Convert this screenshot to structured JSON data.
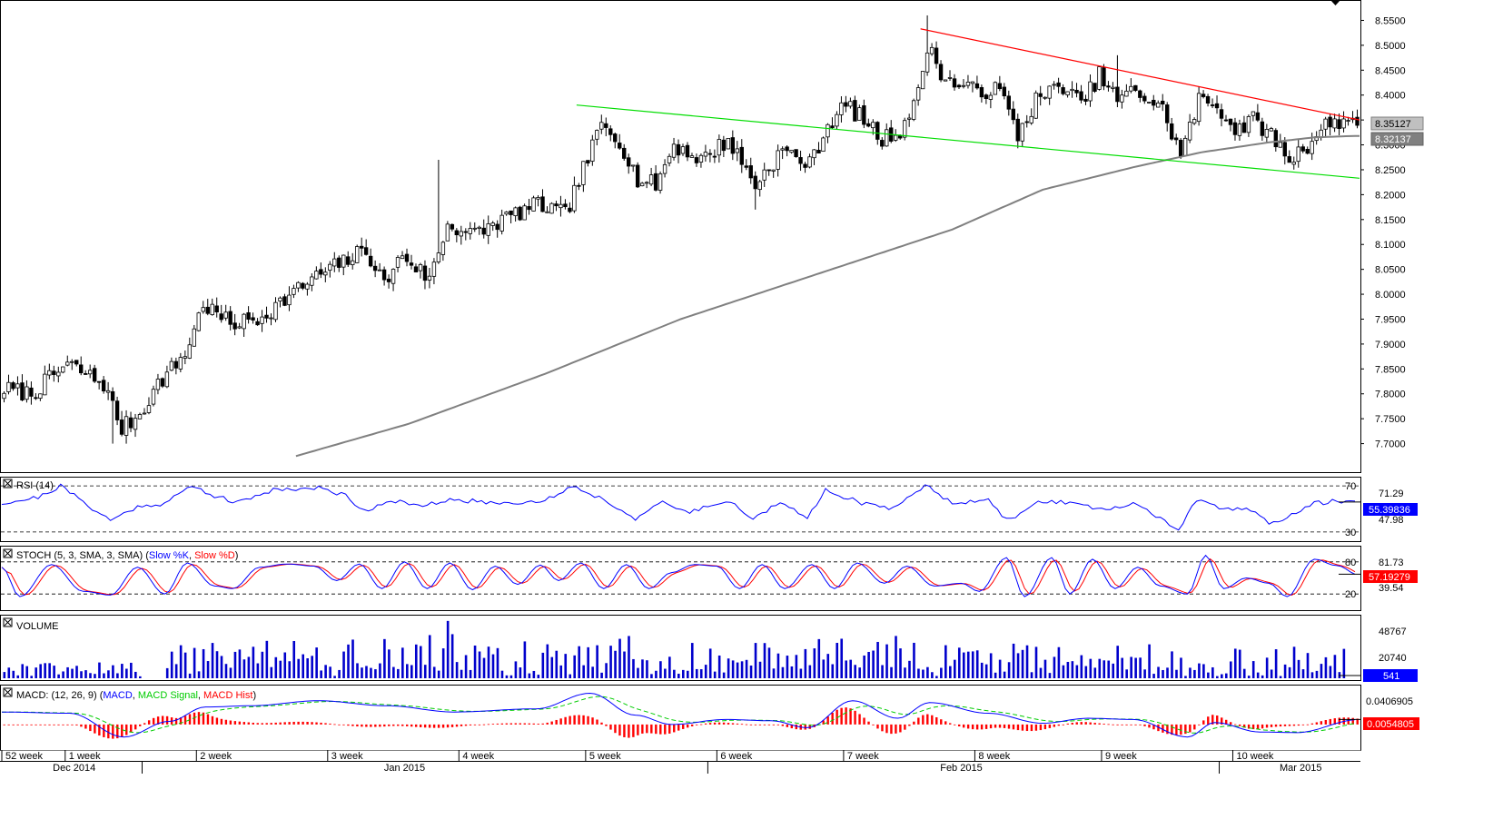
{
  "colors": {
    "background": "#ffffff",
    "border": "#000000",
    "candle": "#000000",
    "ma_line": "#808080",
    "resistance": "#ff0000",
    "support": "#00dd00",
    "rsi": "#0000ff",
    "stoch_k": "#0000ff",
    "stoch_d": "#ff0000",
    "volume": "#0000cc",
    "macd": "#0000ff",
    "macd_signal": "#00cc00",
    "macd_hist": "#ff0000",
    "last_price_tag": "#c0c0c0",
    "stoch_tag": "#ff0000",
    "volume_tag": "#0000ff"
  },
  "chart_data": [
    {
      "type": "candlestick",
      "panel": "price",
      "ylim": [
        7.65,
        8.58
      ],
      "y_ticks": [
        "8.5500",
        "8.5000",
        "8.4500",
        "8.4000",
        "8.3500",
        "8.3000",
        "8.2500",
        "8.2000",
        "8.1500",
        "8.1000",
        "8.0500",
        "8.0000",
        "7.9500",
        "7.9000",
        "7.8500",
        "7.8000",
        "7.7500",
        "7.7000"
      ],
      "last_price": "8.35127",
      "moving_average_value": "8.32137",
      "anchors": [
        {
          "i": 0,
          "p": 7.81
        },
        {
          "i": 6,
          "p": 7.8
        },
        {
          "i": 14,
          "p": 7.86
        },
        {
          "i": 22,
          "p": 7.82
        },
        {
          "i": 26,
          "p": 7.73
        },
        {
          "i": 30,
          "p": 7.76
        },
        {
          "i": 34,
          "p": 7.82
        },
        {
          "i": 40,
          "p": 7.88
        },
        {
          "i": 44,
          "p": 7.98
        },
        {
          "i": 50,
          "p": 7.94
        },
        {
          "i": 56,
          "p": 7.95
        },
        {
          "i": 62,
          "p": 7.99
        },
        {
          "i": 68,
          "p": 8.03
        },
        {
          "i": 76,
          "p": 8.07
        },
        {
          "i": 80,
          "p": 8.09
        },
        {
          "i": 84,
          "p": 8.02
        },
        {
          "i": 88,
          "p": 8.08
        },
        {
          "i": 94,
          "p": 8.03
        },
        {
          "i": 98,
          "p": 8.14
        },
        {
          "i": 104,
          "p": 8.12
        },
        {
          "i": 110,
          "p": 8.15
        },
        {
          "i": 118,
          "p": 8.18
        },
        {
          "i": 124,
          "p": 8.16
        },
        {
          "i": 128,
          "p": 8.25
        },
        {
          "i": 132,
          "p": 8.34
        },
        {
          "i": 136,
          "p": 8.31
        },
        {
          "i": 140,
          "p": 8.23
        },
        {
          "i": 144,
          "p": 8.22
        },
        {
          "i": 148,
          "p": 8.3
        },
        {
          "i": 154,
          "p": 8.27
        },
        {
          "i": 160,
          "p": 8.31
        },
        {
          "i": 166,
          "p": 8.22
        },
        {
          "i": 172,
          "p": 8.29
        },
        {
          "i": 178,
          "p": 8.26
        },
        {
          "i": 182,
          "p": 8.34
        },
        {
          "i": 186,
          "p": 8.38
        },
        {
          "i": 190,
          "p": 8.35
        },
        {
          "i": 194,
          "p": 8.31
        },
        {
          "i": 198,
          "p": 8.33
        },
        {
          "i": 202,
          "p": 8.4
        },
        {
          "i": 204,
          "p": 8.5
        },
        {
          "i": 208,
          "p": 8.43
        },
        {
          "i": 214,
          "p": 8.41
        },
        {
          "i": 220,
          "p": 8.41
        },
        {
          "i": 224,
          "p": 8.32
        },
        {
          "i": 228,
          "p": 8.39
        },
        {
          "i": 234,
          "p": 8.42
        },
        {
          "i": 238,
          "p": 8.38
        },
        {
          "i": 242,
          "p": 8.44
        },
        {
          "i": 246,
          "p": 8.39
        },
        {
          "i": 250,
          "p": 8.41
        },
        {
          "i": 256,
          "p": 8.37
        },
        {
          "i": 260,
          "p": 8.28
        },
        {
          "i": 264,
          "p": 8.39
        },
        {
          "i": 268,
          "p": 8.38
        },
        {
          "i": 272,
          "p": 8.33
        },
        {
          "i": 276,
          "p": 8.35
        },
        {
          "i": 280,
          "p": 8.32
        },
        {
          "i": 284,
          "p": 8.27
        },
        {
          "i": 288,
          "p": 8.3
        },
        {
          "i": 292,
          "p": 8.34
        },
        {
          "i": 296,
          "p": 8.35
        },
        {
          "i": 299,
          "p": 8.35
        }
      ],
      "spikes": [
        {
          "i": 96,
          "high": 8.27
        },
        {
          "i": 204,
          "high": 8.56
        },
        {
          "i": 24,
          "low": 7.7
        },
        {
          "i": 166,
          "low": 8.17
        },
        {
          "i": 246,
          "high": 8.48
        }
      ],
      "moving_average": [
        {
          "i": 65,
          "p": 7.675
        },
        {
          "i": 90,
          "p": 7.74
        },
        {
          "i": 120,
          "p": 7.84
        },
        {
          "i": 150,
          "p": 7.95
        },
        {
          "i": 180,
          "p": 8.04
        },
        {
          "i": 210,
          "p": 8.13
        },
        {
          "i": 230,
          "p": 8.21
        },
        {
          "i": 250,
          "p": 8.255
        },
        {
          "i": 265,
          "p": 8.285
        },
        {
          "i": 280,
          "p": 8.305
        },
        {
          "i": 290,
          "p": 8.315
        },
        {
          "i": 299,
          "p": 8.318
        }
      ],
      "trendlines": [
        {
          "name": "resistance",
          "from": {
            "i": 203,
            "p": 8.533
          },
          "to": {
            "i": 300,
            "p": 8.35
          }
        },
        {
          "name": "support",
          "from": {
            "i": 127,
            "p": 8.38
          },
          "to": {
            "i": 300,
            "p": 8.233
          }
        }
      ]
    },
    {
      "type": "line",
      "panel": "rsi",
      "title": "RSI (14)",
      "ylim": [
        22,
        78
      ],
      "levels": [
        70,
        30
      ],
      "last_value": "55.39836",
      "axis_labels": [
        "71.29",
        "47.98"
      ],
      "anchors": [
        {
          "i": 0,
          "v": 55
        },
        {
          "i": 8,
          "v": 60
        },
        {
          "i": 13,
          "v": 70
        },
        {
          "i": 18,
          "v": 56
        },
        {
          "i": 24,
          "v": 40
        },
        {
          "i": 30,
          "v": 52
        },
        {
          "i": 36,
          "v": 55
        },
        {
          "i": 42,
          "v": 70
        },
        {
          "i": 46,
          "v": 63
        },
        {
          "i": 52,
          "v": 55
        },
        {
          "i": 60,
          "v": 67
        },
        {
          "i": 70,
          "v": 68
        },
        {
          "i": 76,
          "v": 62
        },
        {
          "i": 80,
          "v": 48
        },
        {
          "i": 86,
          "v": 58
        },
        {
          "i": 92,
          "v": 52
        },
        {
          "i": 100,
          "v": 58
        },
        {
          "i": 110,
          "v": 55
        },
        {
          "i": 120,
          "v": 57
        },
        {
          "i": 126,
          "v": 70
        },
        {
          "i": 132,
          "v": 60
        },
        {
          "i": 140,
          "v": 42
        },
        {
          "i": 146,
          "v": 55
        },
        {
          "i": 152,
          "v": 47
        },
        {
          "i": 160,
          "v": 58
        },
        {
          "i": 166,
          "v": 42
        },
        {
          "i": 172,
          "v": 55
        },
        {
          "i": 178,
          "v": 42
        },
        {
          "i": 182,
          "v": 67
        },
        {
          "i": 190,
          "v": 55
        },
        {
          "i": 196,
          "v": 50
        },
        {
          "i": 204,
          "v": 70
        },
        {
          "i": 210,
          "v": 56
        },
        {
          "i": 218,
          "v": 57
        },
        {
          "i": 222,
          "v": 40
        },
        {
          "i": 230,
          "v": 57
        },
        {
          "i": 238,
          "v": 55
        },
        {
          "i": 244,
          "v": 48
        },
        {
          "i": 250,
          "v": 55
        },
        {
          "i": 256,
          "v": 42
        },
        {
          "i": 260,
          "v": 32
        },
        {
          "i": 264,
          "v": 57
        },
        {
          "i": 270,
          "v": 50
        },
        {
          "i": 276,
          "v": 50
        },
        {
          "i": 280,
          "v": 38
        },
        {
          "i": 284,
          "v": 42
        },
        {
          "i": 290,
          "v": 55
        },
        {
          "i": 296,
          "v": 57
        },
        {
          "i": 300,
          "v": 56
        }
      ]
    },
    {
      "type": "line",
      "panel": "stoch",
      "title": "STOCH (5, 3, SMA, 3, SMA)",
      "legend": [
        "Slow %K",
        "Slow %D"
      ],
      "ylim": [
        0,
        100
      ],
      "levels": [
        80,
        20
      ],
      "last_value": "57.19279",
      "axis_labels": [
        "81.73",
        "39.54"
      ],
      "pivots": [
        {
          "i": 0,
          "v": 70
        },
        {
          "i": 4,
          "v": 15
        },
        {
          "i": 11,
          "v": 75
        },
        {
          "i": 18,
          "v": 25
        },
        {
          "i": 24,
          "v": 18
        },
        {
          "i": 30,
          "v": 70
        },
        {
          "i": 36,
          "v": 20
        },
        {
          "i": 41,
          "v": 78
        },
        {
          "i": 47,
          "v": 35
        },
        {
          "i": 51,
          "v": 30
        },
        {
          "i": 57,
          "v": 70
        },
        {
          "i": 63,
          "v": 76
        },
        {
          "i": 69,
          "v": 72
        },
        {
          "i": 74,
          "v": 45
        },
        {
          "i": 79,
          "v": 76
        },
        {
          "i": 84,
          "v": 30
        },
        {
          "i": 89,
          "v": 80
        },
        {
          "i": 94,
          "v": 30
        },
        {
          "i": 99,
          "v": 78
        },
        {
          "i": 104,
          "v": 28
        },
        {
          "i": 109,
          "v": 72
        },
        {
          "i": 114,
          "v": 38
        },
        {
          "i": 119,
          "v": 74
        },
        {
          "i": 123,
          "v": 45
        },
        {
          "i": 128,
          "v": 78
        },
        {
          "i": 133,
          "v": 30
        },
        {
          "i": 138,
          "v": 75
        },
        {
          "i": 143,
          "v": 30
        },
        {
          "i": 148,
          "v": 60
        },
        {
          "i": 153,
          "v": 75
        },
        {
          "i": 158,
          "v": 72
        },
        {
          "i": 163,
          "v": 30
        },
        {
          "i": 168,
          "v": 75
        },
        {
          "i": 173,
          "v": 30
        },
        {
          "i": 179,
          "v": 75
        },
        {
          "i": 184,
          "v": 30
        },
        {
          "i": 189,
          "v": 78
        },
        {
          "i": 195,
          "v": 40
        },
        {
          "i": 200,
          "v": 72
        },
        {
          "i": 206,
          "v": 35
        },
        {
          "i": 212,
          "v": 40
        },
        {
          "i": 216,
          "v": 25
        },
        {
          "i": 222,
          "v": 88
        },
        {
          "i": 226,
          "v": 15
        },
        {
          "i": 232,
          "v": 88
        },
        {
          "i": 236,
          "v": 20
        },
        {
          "i": 241,
          "v": 85
        },
        {
          "i": 246,
          "v": 30
        },
        {
          "i": 251,
          "v": 70
        },
        {
          "i": 256,
          "v": 35
        },
        {
          "i": 262,
          "v": 20
        },
        {
          "i": 266,
          "v": 92
        },
        {
          "i": 270,
          "v": 30
        },
        {
          "i": 275,
          "v": 50
        },
        {
          "i": 280,
          "v": 40
        },
        {
          "i": 284,
          "v": 15
        },
        {
          "i": 290,
          "v": 85
        },
        {
          "i": 295,
          "v": 73
        },
        {
          "i": 300,
          "v": 55
        }
      ]
    },
    {
      "type": "bar",
      "panel": "volume",
      "title": "VOLUME",
      "ylim": [
        0,
        70000
      ],
      "axis_labels": [
        "48767",
        "20740"
      ],
      "last_value": "541",
      "groups": [
        {
          "from": 0,
          "to": 30,
          "v": 12000
        },
        {
          "from": 36,
          "to": 75,
          "v": 30000
        },
        {
          "from": 76,
          "to": 95,
          "v": 33000
        },
        {
          "from": 96,
          "to": 126,
          "v": 30000
        },
        {
          "from": 127,
          "to": 200,
          "v": 32000
        },
        {
          "from": 201,
          "to": 260,
          "v": 27000
        },
        {
          "from": 261,
          "to": 271,
          "v": 13000
        },
        {
          "from": 272,
          "to": 296,
          "v": 25000
        }
      ]
    },
    {
      "type": "line",
      "panel": "macd",
      "title": "MACD: (12, 26, 9)",
      "legend": [
        "MACD",
        "MACD Signal",
        "MACD Hist"
      ],
      "ylim": [
        -0.035,
        0.058
      ],
      "axis_labels": [
        "0.0406905"
      ],
      "last_value": "0.0054805",
      "anchors": [
        {
          "i": 0,
          "v": 0.02
        },
        {
          "i": 15,
          "v": 0.018
        },
        {
          "i": 27,
          "v": -0.02
        },
        {
          "i": 37,
          "v": 0.005
        },
        {
          "i": 45,
          "v": 0.028
        },
        {
          "i": 55,
          "v": 0.03
        },
        {
          "i": 70,
          "v": 0.038
        },
        {
          "i": 85,
          "v": 0.03
        },
        {
          "i": 100,
          "v": 0.02
        },
        {
          "i": 118,
          "v": 0.025
        },
        {
          "i": 130,
          "v": 0.05
        },
        {
          "i": 140,
          "v": 0.015
        },
        {
          "i": 148,
          "v": 0.0
        },
        {
          "i": 160,
          "v": 0.008
        },
        {
          "i": 170,
          "v": 0.006
        },
        {
          "i": 178,
          "v": -0.005
        },
        {
          "i": 188,
          "v": 0.038
        },
        {
          "i": 198,
          "v": 0.01
        },
        {
          "i": 205,
          "v": 0.035
        },
        {
          "i": 218,
          "v": 0.018
        },
        {
          "i": 230,
          "v": 0.002
        },
        {
          "i": 240,
          "v": 0.01
        },
        {
          "i": 250,
          "v": 0.008
        },
        {
          "i": 262,
          "v": -0.02
        },
        {
          "i": 268,
          "v": 0.003
        },
        {
          "i": 278,
          "v": -0.012
        },
        {
          "i": 286,
          "v": -0.013
        },
        {
          "i": 300,
          "v": 0.008
        }
      ]
    }
  ],
  "x_axis": {
    "n_bars": 300,
    "week_labels": [
      {
        "label": "52 week",
        "i": 0
      },
      {
        "label": "1 week",
        "i": 14
      },
      {
        "label": "2 week",
        "i": 43
      },
      {
        "label": "3 week",
        "i": 72
      },
      {
        "label": "4 week",
        "i": 101
      },
      {
        "label": "5 week",
        "i": 129
      },
      {
        "label": "6 week",
        "i": 158
      },
      {
        "label": "7 week",
        "i": 186
      },
      {
        "label": "8 week",
        "i": 215
      },
      {
        "label": "9 week",
        "i": 243
      },
      {
        "label": "10 week",
        "i": 272
      }
    ],
    "month_labels": [
      {
        "label": "Dec 2014",
        "i": 16
      },
      {
        "label": "Jan 2015",
        "i": 89
      },
      {
        "label": "Feb 2015",
        "i": 212
      },
      {
        "label": "Mar 2015",
        "i": 287
      }
    ],
    "month_separators": [
      31,
      156,
      269
    ]
  }
}
